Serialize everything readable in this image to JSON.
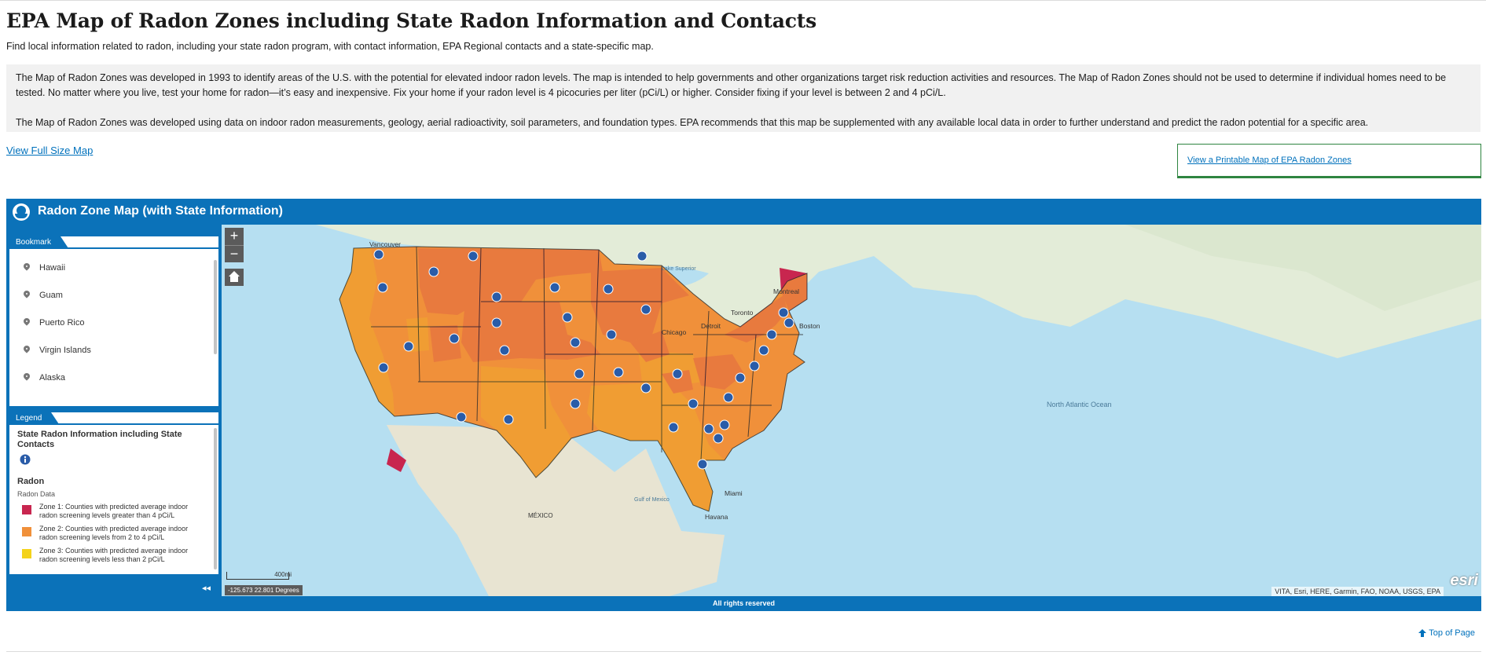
{
  "page": {
    "title": "EPA Map of Radon Zones including State Radon Information and Contacts",
    "subtitle": "Find local information related to radon, including your state radon program, with contact information, EPA Regional contacts and a state-specific map.",
    "info_p1": "The Map of Radon Zones was developed in 1993 to identify areas of the U.S. with the potential for elevated indoor radon levels. The map is intended to help governments and other organizations target risk reduction activities and resources. The Map of Radon Zones should not be used to determine if individual homes need to be tested. No matter where you live, test your home for radon—it’s easy and inexpensive. Fix your home if your radon level is 4 picocuries per liter (pCi/L) or higher. Consider fixing if your level is between 2 and 4 pCi/L.",
    "info_p2": "The Map of Radon Zones was developed using data on indoor radon measurements, geology, aerial radioactivity, soil parameters, and foundation types. EPA recommends that this map be supplemented with any available local data in order to further understand and predict the radon potential for a specific area.",
    "view_full_map": "View Full Size Map",
    "print_map_link": "View a Printable Map of EPA Radon Zones",
    "top_of_page": "Top of Page"
  },
  "app": {
    "title": "Radon Zone Map (with State Information)",
    "footer": "All rights reserved",
    "accent": "#0b72b9",
    "bookmark_tab": "Bookmark",
    "bookmarks": [
      "Hawaii",
      "Guam",
      "Puerto Rico",
      "Virgin Islands",
      "Alaska"
    ],
    "legend_tab": "Legend",
    "legend": {
      "layer1": "State Radon Information including State Contacts",
      "layer2": "Radon",
      "layer2_sub": "Radon Data",
      "zones": [
        {
          "label": "Zone 1: Counties with predicted average indoor radon screening levels greater than 4 pCi/L",
          "color": "#c8264f"
        },
        {
          "label": "Zone 2: Counties with predicted average indoor radon screening levels from 2 to 4 pCi/L",
          "color": "#f0903a"
        },
        {
          "label": "Zone 3: Counties with predicted average indoor radon screening levels less than 2 pCi/L",
          "color": "#f4d31b"
        }
      ]
    }
  },
  "map": {
    "zoom_in": "+",
    "zoom_out": "−",
    "scale": "400mi",
    "coords": "-125.673 22.801 Degrees",
    "attribution": "VITA, Esri, HERE, Garmin, FAO, NOAA, USGS, EPA",
    "esri_logo": "esri",
    "place_labels": [
      "Vancouver",
      "Montreal",
      "Toronto",
      "Boston",
      "North Atlantic Ocean",
      "Gulf of Mexico",
      "MÉXICO",
      "Miami",
      "Havana",
      "Lake Superior",
      "Chicago",
      "Detroit"
    ]
  }
}
